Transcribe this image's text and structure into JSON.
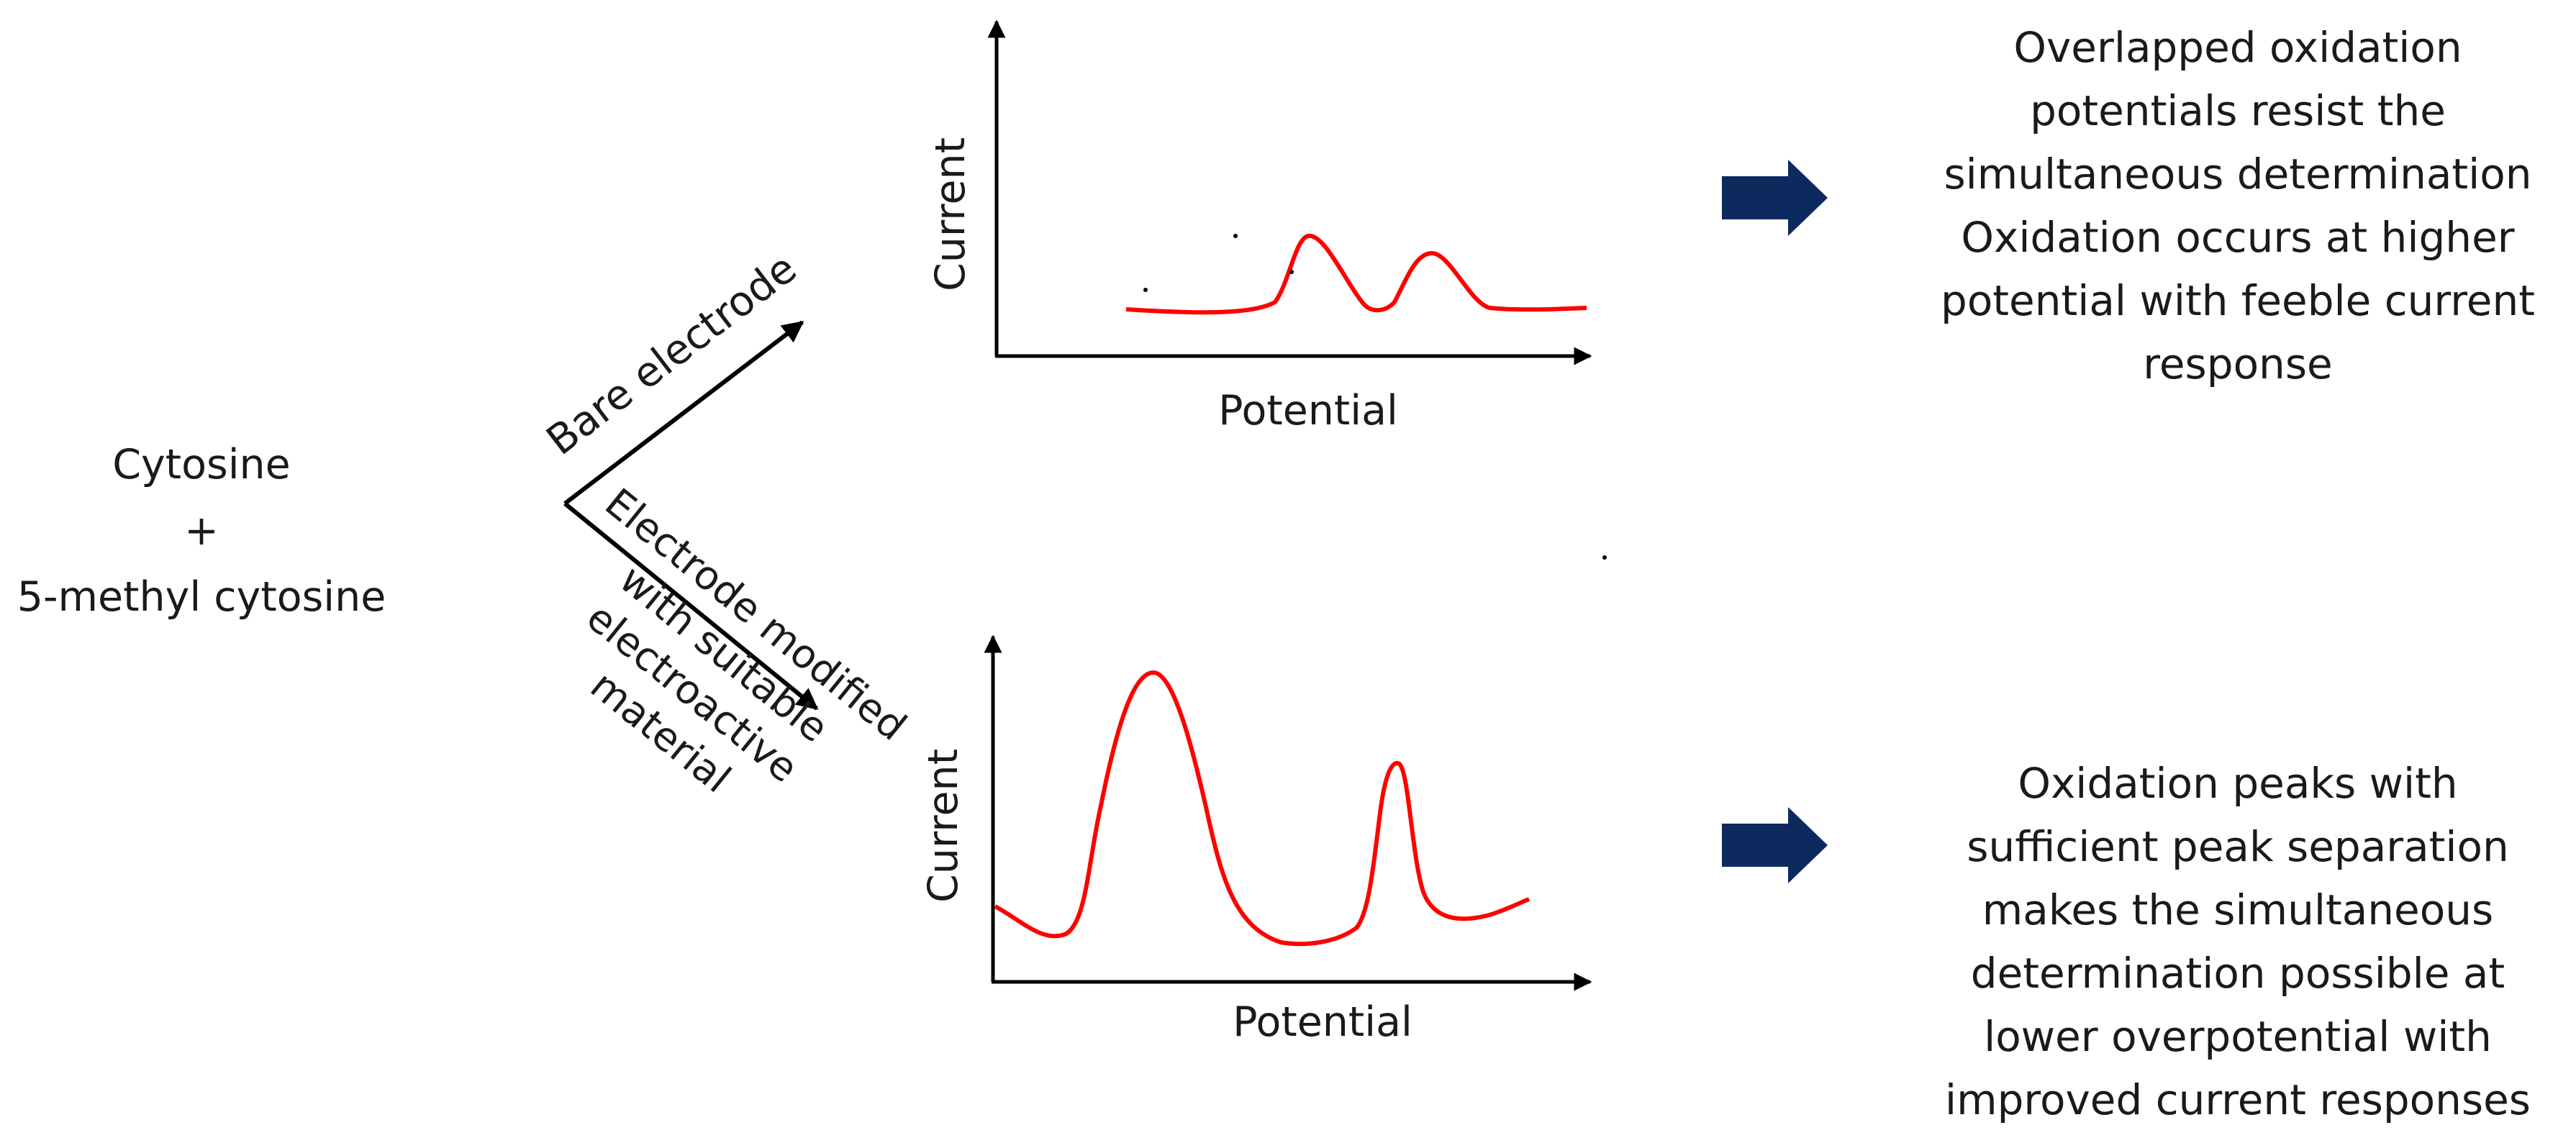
{
  "analytes": {
    "line1": "Cytosine",
    "plus": "+",
    "line2": "5-methyl cytosine"
  },
  "branches": {
    "bare": "Bare electrode",
    "modified": [
      "Electrode modified",
      "with suitable",
      "electroactive",
      "material"
    ]
  },
  "plots": {
    "top": {
      "xlabel": "Potential",
      "ylabel": "Current"
    },
    "bottom": {
      "xlabel": "Potential",
      "ylabel": "Current"
    }
  },
  "notes": {
    "top": [
      "Overlapped oxidation",
      "potentials resist the",
      "simultaneous determination",
      "Oxidation occurs at higher",
      "potential with feeble current",
      "response"
    ],
    "bottom": [
      "Oxidation peaks with",
      "sufficient peak separation",
      "makes the simultaneous",
      "determination possible at",
      "lower overpotential with",
      "improved current responses"
    ]
  },
  "colors": {
    "curve": "#ff0000",
    "axis": "#000000",
    "arrow": "#0d2a5e"
  },
  "icons": {
    "result_arrow": "right-block-arrow-icon"
  }
}
